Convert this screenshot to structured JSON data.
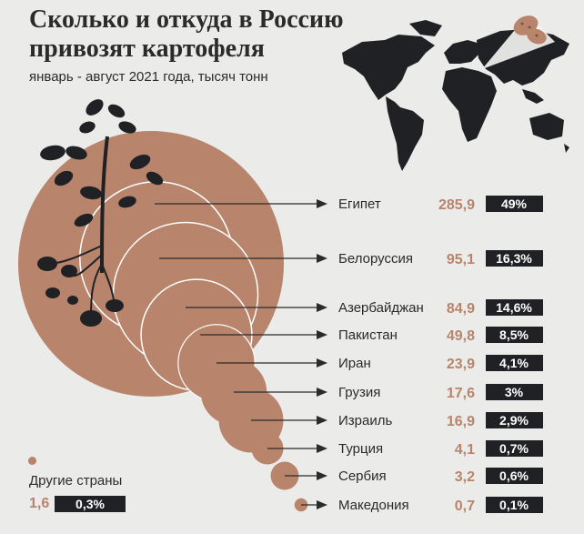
{
  "title": "Сколько и откуда в Россию привозят картофеля",
  "subtitle": "январь - август 2021 года, тысяч тонн",
  "other": {
    "label": "Другие страны",
    "value": "1,6",
    "share": "0,3%"
  },
  "colors": {
    "accent": "#b8846b",
    "dark": "#202124",
    "background": "#ebebea"
  },
  "icons": [
    "world-map-icon",
    "potato-icon",
    "potato-plant-icon"
  ],
  "chart_data": {
    "type": "bubble",
    "unit": "тысяч тонн",
    "categories": [
      "Египет",
      "Белоруссия",
      "Азербайджан",
      "Пакистан",
      "Иран",
      "Грузия",
      "Израиль",
      "Турция",
      "Сербия",
      "Македония"
    ],
    "values": [
      285.9,
      95.1,
      84.9,
      49.8,
      23.9,
      17.6,
      16.9,
      4.1,
      3.2,
      0.7
    ],
    "value_labels": [
      "285,9",
      "95,1",
      "84,9",
      "49,8",
      "23,9",
      "17,6",
      "16,9",
      "4,1",
      "3,2",
      "0,7"
    ],
    "shares": [
      "49%",
      "16,3%",
      "14,6%",
      "8,5%",
      "4,1%",
      "3%",
      "2,9%",
      "0,7%",
      "0,6%",
      "0,1%"
    ]
  }
}
